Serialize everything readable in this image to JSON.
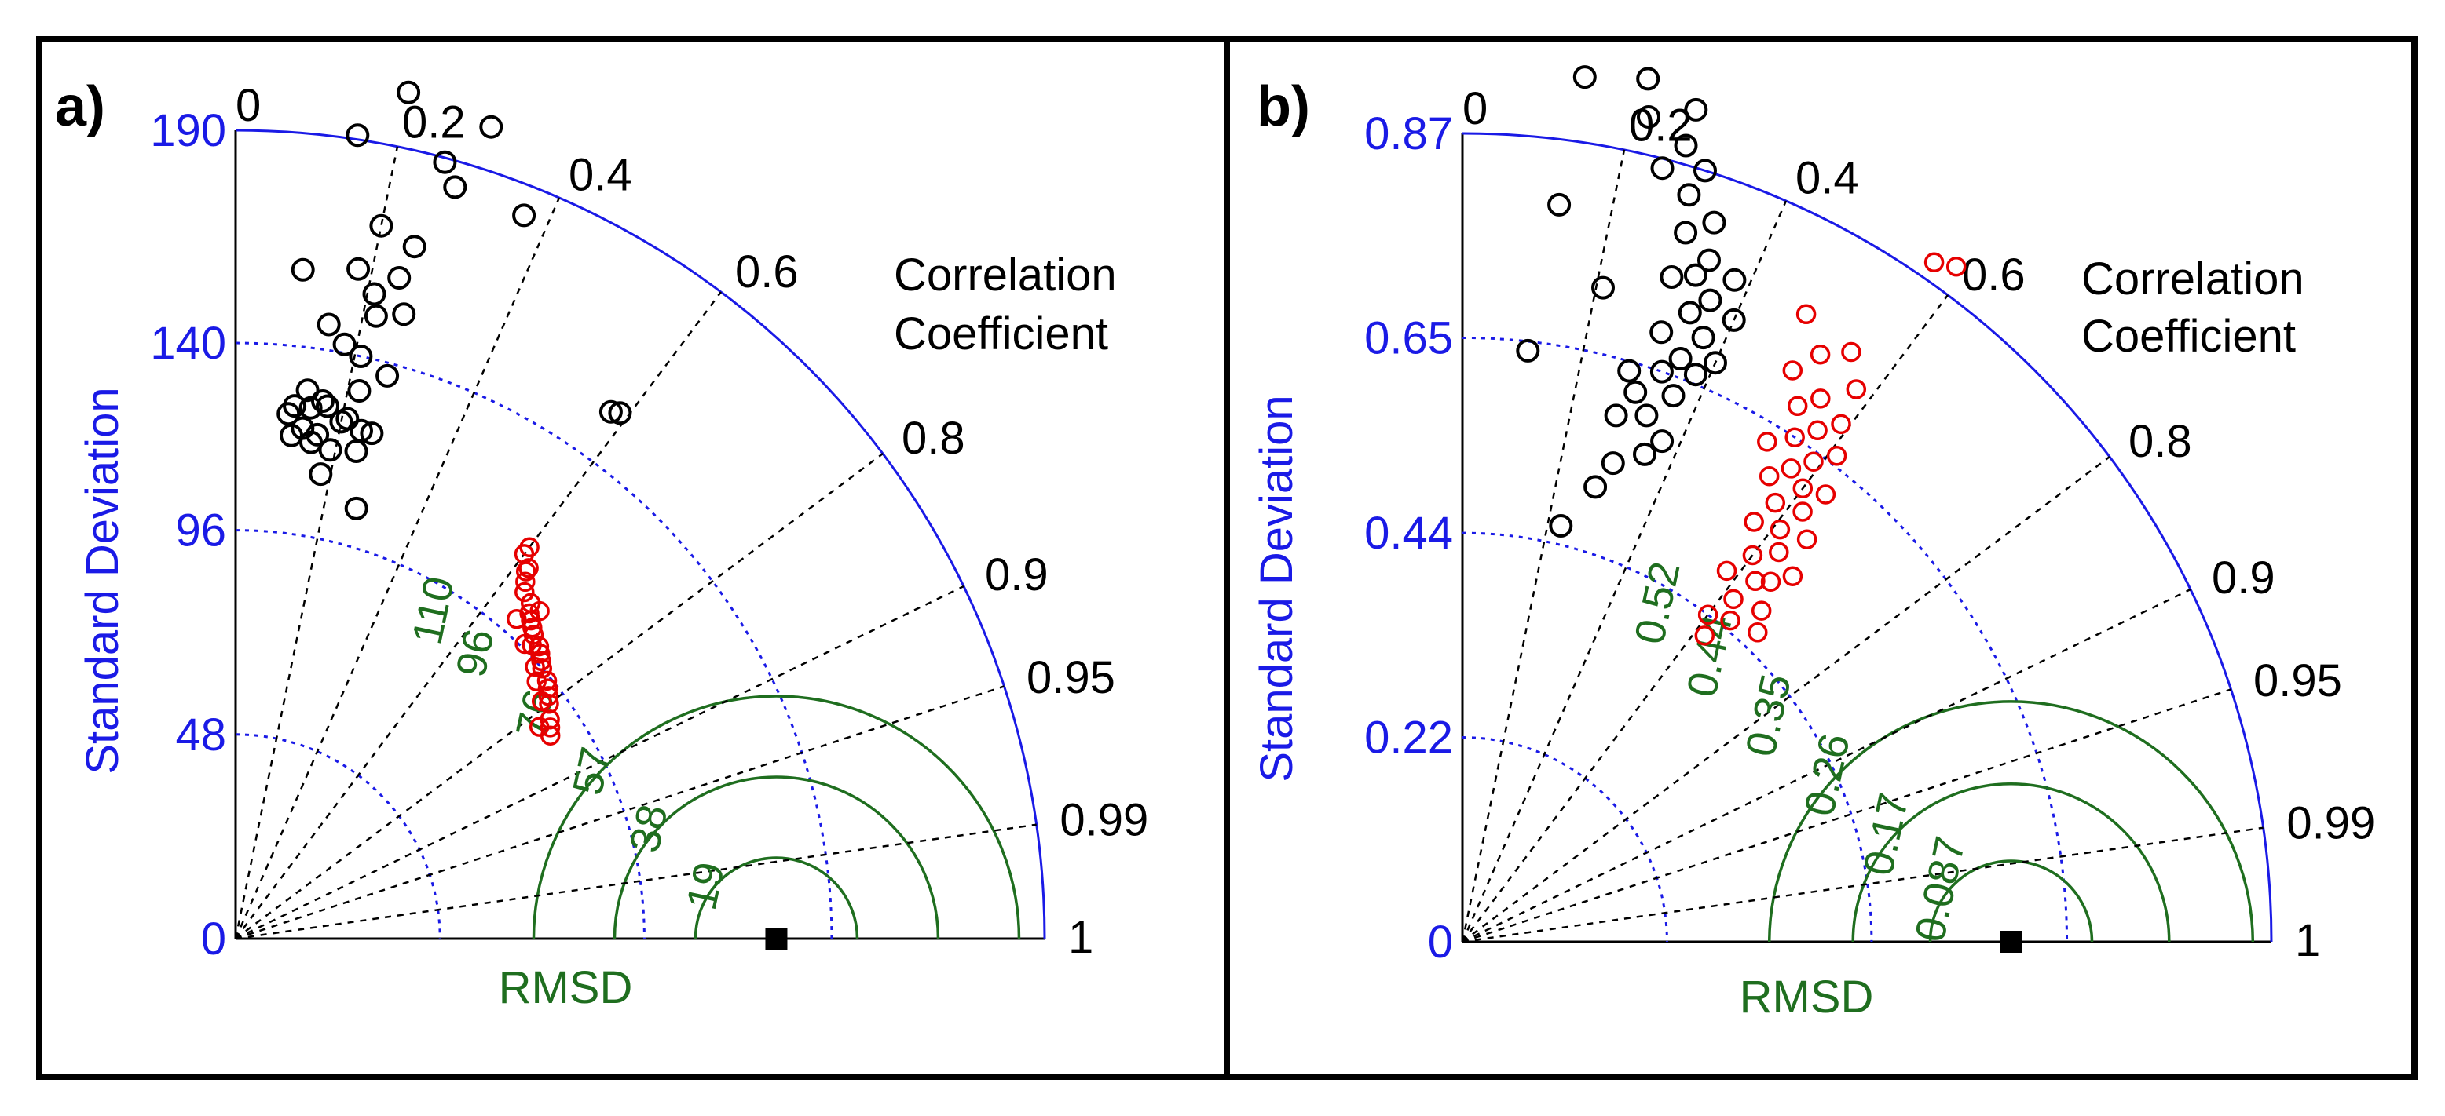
{
  "chart_data": [
    {
      "type": "scatter",
      "subtype": "taylor-diagram",
      "panel_label": "a)",
      "ylabel": "Standard Deviation",
      "xlabel": "RMSD",
      "corr_title": [
        "Correlation",
        "Coefficient"
      ],
      "std_ticks": [
        "0",
        "48",
        "96",
        "140",
        "190"
      ],
      "std_tick_values": [
        0,
        48,
        96,
        140,
        190
      ],
      "std_max": 190,
      "reference_std": 127,
      "corr_ticks": [
        "0",
        "0.2",
        "0.4",
        "0.6",
        "0.8",
        "0.9",
        "0.95",
        "0.99",
        "1"
      ],
      "corr_tick_values": [
        0,
        0.2,
        0.4,
        0.6,
        0.8,
        0.9,
        0.95,
        0.99,
        1
      ],
      "rmsd_labels": [
        "110",
        "96",
        "76",
        "57",
        "38",
        "19"
      ],
      "rmsd_label_values": [
        110,
        96,
        76,
        57,
        38,
        19
      ],
      "rmsd_dotted_values": [
        19,
        38,
        57,
        76,
        96,
        110,
        130,
        150
      ],
      "rmsd_solid_values": [
        19,
        38,
        57
      ],
      "series": [
        {
          "name": "black circles",
          "color": "#000000",
          "points": [
            {
              "std": 203,
              "corr": 0.2
            },
            {
              "std": 200,
              "corr": 0.3
            },
            {
              "std": 189,
              "corr": 0.26
            },
            {
              "std": 191,
              "corr": 0.15
            },
            {
              "std": 184,
              "corr": 0.28
            },
            {
              "std": 183,
              "corr": 0.37
            },
            {
              "std": 171,
              "corr": 0.2
            },
            {
              "std": 168,
              "corr": 0.25
            },
            {
              "std": 160,
              "corr": 0.24
            },
            {
              "std": 160,
              "corr": 0.18
            },
            {
              "std": 158,
              "corr": 0.1
            },
            {
              "std": 155,
              "corr": 0.21
            },
            {
              "std": 152,
              "corr": 0.26
            },
            {
              "std": 150,
              "corr": 0.22
            },
            {
              "std": 146,
              "corr": 0.15
            },
            {
              "std": 142,
              "corr": 0.18
            },
            {
              "std": 140,
              "corr": 0.21
            },
            {
              "std": 137,
              "corr": 0.26
            },
            {
              "std": 132,
              "corr": 0.22
            },
            {
              "std": 130,
              "corr": 0.13
            },
            {
              "std": 128,
              "corr": 0.16
            },
            {
              "std": 127,
              "corr": 0.17
            },
            {
              "std": 126,
              "corr": 0.11
            },
            {
              "std": 126,
              "corr": 0.14
            },
            {
              "std": 125,
              "corr": 0.21
            },
            {
              "std": 124,
              "corr": 0.1
            },
            {
              "std": 124,
              "corr": 0.2
            },
            {
              "std": 123,
              "corr": 0.24
            },
            {
              "std": 123,
              "corr": 0.26
            },
            {
              "std": 121,
              "corr": 0.13
            },
            {
              "std": 120,
              "corr": 0.16
            },
            {
              "std": 119,
              "corr": 0.11
            },
            {
              "std": 118,
              "corr": 0.15
            },
            {
              "std": 118,
              "corr": 0.24
            },
            {
              "std": 117,
              "corr": 0.19
            },
            {
              "std": 111,
              "corr": 0.18
            },
            {
              "std": 105,
              "corr": 0.27
            },
            {
              "std": 153,
              "corr": 0.59
            },
            {
              "std": 152,
              "corr": 0.58
            }
          ]
        },
        {
          "name": "red circles",
          "color": "#e60000",
          "points": [
            {
              "std": 115,
              "corr": 0.6
            },
            {
              "std": 113,
              "corr": 0.6
            },
            {
              "std": 111,
              "corr": 0.62
            },
            {
              "std": 110,
              "corr": 0.62
            },
            {
              "std": 108,
              "corr": 0.63
            },
            {
              "std": 106,
              "corr": 0.64
            },
            {
              "std": 105,
              "corr": 0.66
            },
            {
              "std": 103,
              "corr": 0.67
            },
            {
              "std": 102,
              "corr": 0.68
            },
            {
              "std": 101,
              "corr": 0.69
            },
            {
              "std": 100,
              "corr": 0.7
            },
            {
              "std": 99,
              "corr": 0.72
            },
            {
              "std": 98,
              "corr": 0.73
            },
            {
              "std": 98,
              "corr": 0.71
            },
            {
              "std": 97,
              "corr": 0.74
            },
            {
              "std": 96,
              "corr": 0.75
            },
            {
              "std": 95,
              "corr": 0.77
            },
            {
              "std": 95,
              "corr": 0.74
            },
            {
              "std": 94,
              "corr": 0.78
            },
            {
              "std": 93,
              "corr": 0.79
            },
            {
              "std": 92,
              "corr": 0.8
            },
            {
              "std": 90,
              "corr": 0.82
            },
            {
              "std": 89,
              "corr": 0.83
            },
            {
              "std": 88,
              "corr": 0.84
            },
            {
              "std": 105,
              "corr": 0.68
            },
            {
              "std": 100,
              "corr": 0.66
            },
            {
              "std": 97,
              "corr": 0.7
            },
            {
              "std": 93,
              "corr": 0.76
            },
            {
              "std": 91,
              "corr": 0.79
            },
            {
              "std": 87,
              "corr": 0.82
            }
          ]
        }
      ]
    },
    {
      "type": "scatter",
      "subtype": "taylor-diagram",
      "panel_label": "b)",
      "ylabel": "Standard Deviation",
      "xlabel": "RMSD",
      "corr_title": [
        "Correlation",
        "Coefficient"
      ],
      "std_ticks": [
        "0",
        "0.22",
        "0.44",
        "0.65",
        "0.87"
      ],
      "std_tick_values": [
        0,
        0.22,
        0.44,
        0.65,
        0.87
      ],
      "std_max": 0.87,
      "reference_std": 0.59,
      "corr_ticks": [
        "0",
        "0.2",
        "0.4",
        "0.6",
        "0.8",
        "0.9",
        "0.95",
        "0.99",
        "1"
      ],
      "corr_tick_values": [
        0,
        0.2,
        0.4,
        0.6,
        0.8,
        0.9,
        0.95,
        0.99,
        1
      ],
      "rmsd_labels": [
        "0.52",
        "0.44",
        "0.35",
        "0.26",
        "0.17",
        "0.087"
      ],
      "rmsd_label_values": [
        0.52,
        0.44,
        0.35,
        0.26,
        0.17,
        0.087
      ],
      "rmsd_dotted_values": [
        0.087,
        0.17,
        0.26,
        0.35,
        0.44,
        0.52,
        0.61,
        0.7
      ],
      "rmsd_solid_values": [
        0.087,
        0.17,
        0.26
      ],
      "series": [
        {
          "name": "black circles",
          "color": "#000000",
          "points": [
            {
              "std": 0.94,
              "corr": 0.14
            },
            {
              "std": 0.95,
              "corr": 0.21
            },
            {
              "std": 0.93,
              "corr": 0.27
            },
            {
              "std": 0.91,
              "corr": 0.22
            },
            {
              "std": 0.89,
              "corr": 0.27
            },
            {
              "std": 0.87,
              "corr": 0.3
            },
            {
              "std": 0.86,
              "corr": 0.25
            },
            {
              "std": 0.84,
              "corr": 0.29
            },
            {
              "std": 0.82,
              "corr": 0.33
            },
            {
              "std": 0.8,
              "corr": 0.13
            },
            {
              "std": 0.8,
              "corr": 0.3
            },
            {
              "std": 0.78,
              "corr": 0.34
            },
            {
              "std": 0.77,
              "corr": 0.38
            },
            {
              "std": 0.76,
              "corr": 0.33
            },
            {
              "std": 0.75,
              "corr": 0.3
            },
            {
              "std": 0.74,
              "corr": 0.36
            },
            {
              "std": 0.73,
              "corr": 0.4
            },
            {
              "std": 0.72,
              "corr": 0.34
            },
            {
              "std": 0.72,
              "corr": 0.21
            },
            {
              "std": 0.7,
              "corr": 0.37
            },
            {
              "std": 0.69,
              "corr": 0.31
            },
            {
              "std": 0.68,
              "corr": 0.4
            },
            {
              "std": 0.67,
              "corr": 0.35
            },
            {
              "std": 0.66,
              "corr": 0.38
            },
            {
              "std": 0.65,
              "corr": 0.33
            },
            {
              "std": 0.64,
              "corr": 0.28
            },
            {
              "std": 0.64,
              "corr": 0.11
            },
            {
              "std": 0.63,
              "corr": 0.36
            },
            {
              "std": 0.62,
              "corr": 0.3
            },
            {
              "std": 0.6,
              "corr": 0.33
            },
            {
              "std": 0.59,
              "corr": 0.28
            },
            {
              "std": 0.58,
              "corr": 0.37
            },
            {
              "std": 0.56,
              "corr": 0.35
            },
            {
              "std": 0.54,
              "corr": 0.3
            },
            {
              "std": 0.51,
              "corr": 0.28
            },
            {
              "std": 0.46,
              "corr": 0.23
            }
          ]
        },
        {
          "name": "red circles",
          "color": "#e60000",
          "points": [
            {
              "std": 0.9,
              "corr": 0.59
            },
            {
              "std": 0.89,
              "corr": 0.57
            },
            {
              "std": 0.77,
              "corr": 0.48
            },
            {
              "std": 0.76,
              "corr": 0.55
            },
            {
              "std": 0.74,
              "corr": 0.52
            },
            {
              "std": 0.73,
              "corr": 0.58
            },
            {
              "std": 0.71,
              "corr": 0.5
            },
            {
              "std": 0.7,
              "corr": 0.55
            },
            {
              "std": 0.69,
              "corr": 0.59
            },
            {
              "std": 0.68,
              "corr": 0.53
            },
            {
              "std": 0.67,
              "corr": 0.57
            },
            {
              "std": 0.66,
              "corr": 0.61
            },
            {
              "std": 0.65,
              "corr": 0.55
            },
            {
              "std": 0.64,
              "corr": 0.59
            },
            {
              "std": 0.63,
              "corr": 0.52
            },
            {
              "std": 0.62,
              "corr": 0.63
            },
            {
              "std": 0.62,
              "corr": 0.57
            },
            {
              "std": 0.61,
              "corr": 0.6
            },
            {
              "std": 0.6,
              "corr": 0.55
            },
            {
              "std": 0.59,
              "corr": 0.62
            },
            {
              "std": 0.58,
              "corr": 0.58
            },
            {
              "std": 0.57,
              "corr": 0.65
            },
            {
              "std": 0.56,
              "corr": 0.61
            },
            {
              "std": 0.55,
              "corr": 0.57
            },
            {
              "std": 0.54,
              "corr": 0.63
            },
            {
              "std": 0.53,
              "corr": 0.67
            },
            {
              "std": 0.52,
              "corr": 0.6
            },
            {
              "std": 0.51,
              "corr": 0.65
            },
            {
              "std": 0.5,
              "corr": 0.63
            },
            {
              "std": 0.49,
              "corr": 0.58
            },
            {
              "std": 0.48,
              "corr": 0.67
            },
            {
              "std": 0.47,
              "corr": 0.62
            },
            {
              "std": 0.46,
              "corr": 0.69
            },
            {
              "std": 0.45,
              "corr": 0.64
            },
            {
              "std": 0.44,
              "corr": 0.6
            },
            {
              "std": 0.42,
              "corr": 0.62
            }
          ]
        }
      ]
    }
  ]
}
